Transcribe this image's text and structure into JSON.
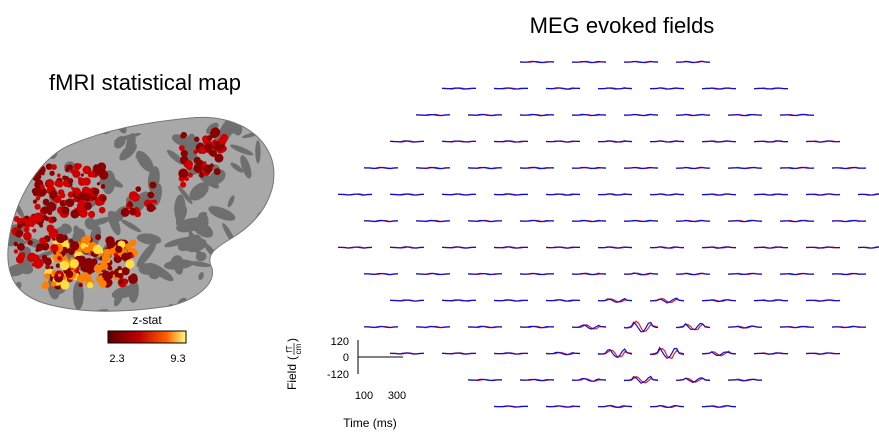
{
  "left_panel": {
    "title": "fMRI statistical map",
    "colorbar": {
      "label": "z-stat",
      "min_label": "2.3",
      "max_label": "9.3"
    }
  },
  "right_panel": {
    "title": "MEG evoked fields",
    "scale": {
      "ylabel": "Field",
      "unit_num": "fT",
      "unit_den": "cm",
      "yticks": [
        "120",
        "0",
        "-120"
      ],
      "xticks": [
        "100",
        "300"
      ],
      "xlabel": "Time (ms)"
    }
  }
}
